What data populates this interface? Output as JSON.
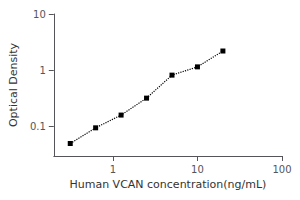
{
  "chart_data": {
    "type": "line",
    "x": [
      0.313,
      0.625,
      1.25,
      2.5,
      5.0,
      10.0,
      20.0
    ],
    "values": [
      0.05,
      0.095,
      0.16,
      0.32,
      0.82,
      1.15,
      2.2
    ],
    "xlabel": "Human VCAN concentration(ng/mL)",
    "ylabel": "Optical Density",
    "xlim": [
      0.2,
      100
    ],
    "ylim": [
      0.03,
      10
    ],
    "xticks": [
      1,
      10,
      100
    ],
    "yticks": [
      0.1,
      1,
      10
    ],
    "log": true,
    "grid": false,
    "color": "black",
    "marker": "square",
    "line_style": "dotted"
  }
}
